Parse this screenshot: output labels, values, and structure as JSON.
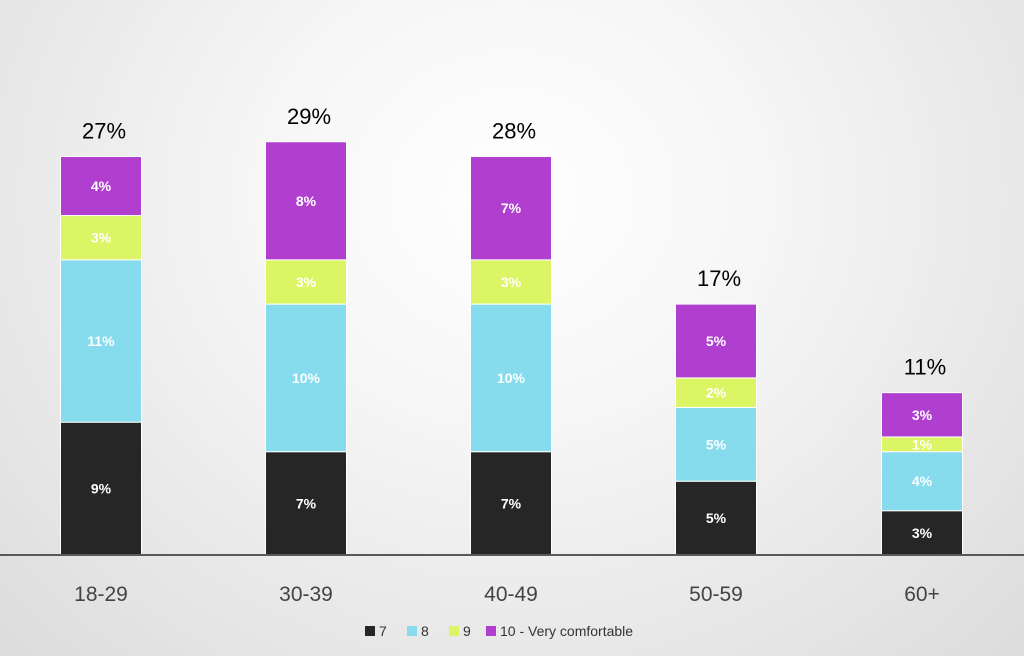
{
  "chart_data": {
    "type": "bar",
    "stacked": true,
    "categories": [
      "18-29",
      "30-39",
      "40-49",
      "50-59",
      "60+"
    ],
    "series": [
      {
        "name": "7",
        "color": "#262626",
        "values": [
          9,
          7,
          7,
          5,
          3
        ],
        "labels": [
          "9%",
          "7%",
          "7%",
          "5%",
          "3%"
        ]
      },
      {
        "name": "8",
        "color": "#86dbed",
        "values": [
          11,
          10,
          10,
          5,
          4
        ],
        "labels": [
          "11%",
          "10%",
          "10%",
          "5%",
          "4%"
        ]
      },
      {
        "name": "9",
        "color": "#dcf564",
        "values": [
          3,
          3,
          3,
          2,
          1
        ],
        "labels": [
          "3%",
          "3%",
          "3%",
          "2%",
          "1%"
        ]
      },
      {
        "name": "10 - Very comfortable",
        "color": "#b03fcf",
        "values": [
          4,
          8,
          7,
          5,
          3
        ],
        "labels": [
          "4%",
          "8%",
          "7%",
          "5%",
          "3%"
        ]
      }
    ],
    "totals": [
      27,
      29,
      28,
      17,
      11
    ],
    "total_labels": [
      "27%",
      "29%",
      "28%",
      "17%",
      "11%"
    ],
    "ylim": [
      0,
      29
    ],
    "grid": false,
    "legend_position": "bottom"
  }
}
